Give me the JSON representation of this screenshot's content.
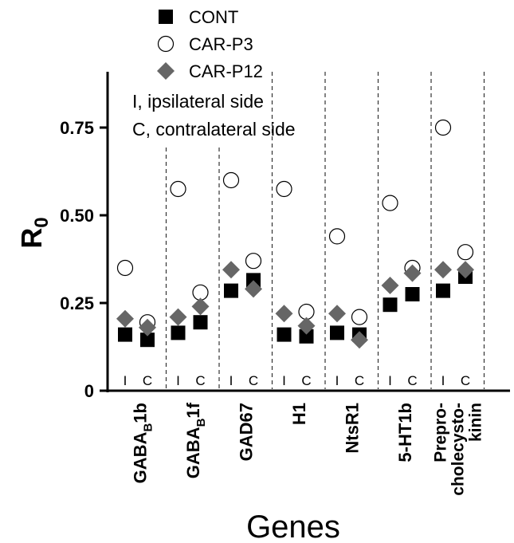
{
  "chart_data": {
    "type": "scatter",
    "title": "",
    "xlabel": "Genes",
    "ylabel": "R",
    "ylabel_subscript": "0",
    "ylim": [
      0,
      0.9
    ],
    "yticks": [
      "0",
      "0.25",
      "0.50",
      "0.75"
    ],
    "ytick_values": [
      0,
      0.25,
      0.5,
      0.75
    ],
    "grid": false,
    "legend_position": "top-center",
    "notes": [
      "I, ipsilateral side",
      "C, contralateral side"
    ],
    "side_labels": [
      "I",
      "C"
    ],
    "genes": [
      {
        "name": "GABA",
        "sub": "B",
        "suffix": "1b"
      },
      {
        "name": "GABA",
        "sub": "B",
        "suffix": "1f"
      },
      {
        "name": "GAD67",
        "sub": "",
        "suffix": ""
      },
      {
        "name": "H1",
        "sub": "",
        "suffix": ""
      },
      {
        "name": "NtsR1",
        "sub": "",
        "suffix": ""
      },
      {
        "name": "5-HT1b",
        "sub": "",
        "suffix": ""
      },
      {
        "lines": [
          "Prepro-",
          "cholecysto-",
          "kinin"
        ]
      }
    ],
    "series": [
      {
        "name": "CONT",
        "marker": "square",
        "color": "#000000",
        "values": [
          [
            0.16,
            0.145
          ],
          [
            0.165,
            0.195
          ],
          [
            0.285,
            0.315
          ],
          [
            0.16,
            0.155
          ],
          [
            0.165,
            0.16
          ],
          [
            0.245,
            0.275
          ],
          [
            0.285,
            0.325
          ]
        ]
      },
      {
        "name": "CAR-P3",
        "marker": "open-circle",
        "color": "#000000",
        "values": [
          [
            0.35,
            0.195
          ],
          [
            0.575,
            0.28
          ],
          [
            0.6,
            0.37
          ],
          [
            0.575,
            0.225
          ],
          [
            0.44,
            0.21
          ],
          [
            0.535,
            0.35
          ],
          [
            0.75,
            0.395
          ]
        ]
      },
      {
        "name": "CAR-P12",
        "marker": "diamond",
        "color": "#666666",
        "values": [
          [
            0.205,
            0.18
          ],
          [
            0.21,
            0.24
          ],
          [
            0.345,
            0.29
          ],
          [
            0.22,
            0.185
          ],
          [
            0.22,
            0.145
          ],
          [
            0.3,
            0.335
          ],
          [
            0.345,
            0.345
          ]
        ]
      }
    ]
  }
}
